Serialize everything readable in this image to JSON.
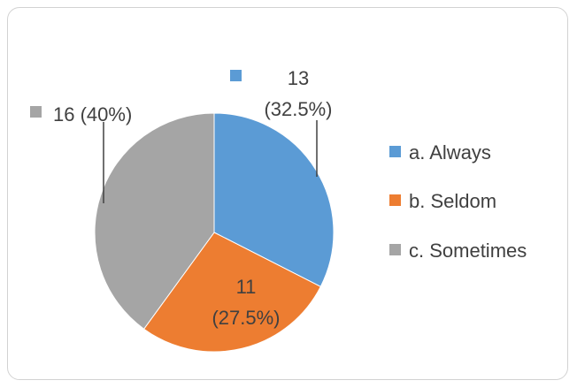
{
  "chart_data": {
    "type": "pie",
    "categories": [
      "a. Always",
      "b. Seldom",
      "c. Sometimes"
    ],
    "values": [
      13,
      11,
      16
    ],
    "percents": [
      "32.5%",
      "27.5%",
      "40%"
    ],
    "colors": [
      "#5b9bd5",
      "#ed7d31",
      "#a5a5a5"
    ],
    "data_labels": [
      {
        "value_text": "13",
        "percent_text": "(32.5%)"
      },
      {
        "value_text": "11",
        "percent_text": "(27.5%)"
      },
      {
        "value_text": "16 (40%)",
        "percent_text": ""
      }
    ],
    "legend": {
      "position": "right",
      "entries": [
        "a. Always",
        "b. Seldom",
        "c. Sometimes"
      ]
    },
    "title": ""
  }
}
